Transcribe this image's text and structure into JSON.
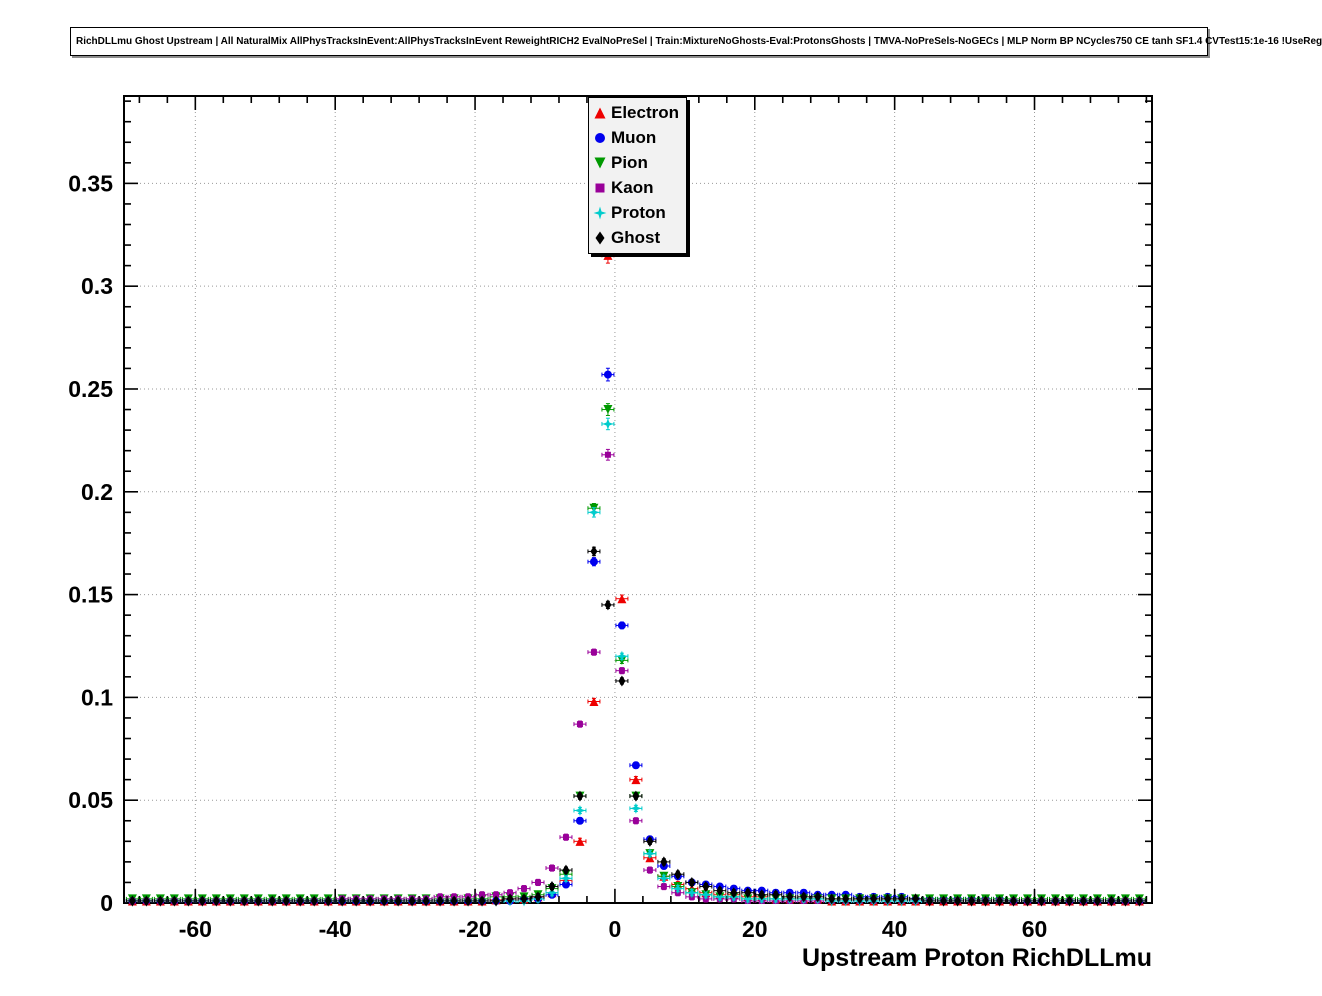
{
  "chart_data": {
    "type": "scatter",
    "title": "RichDLLmu Ghost Upstream | All NaturalMix AllPhysTracksInEvent:AllPhysTracksInEvent ReweightRICH2 EvalNoPreSel | Train:MixtureNoGhosts-Eval:ProtonsGhosts | TMVA-NoPreSels-NoGECs | MLP Norm BP NCycles750 CE tanh SF1.4 CVTest15:1e-16 !UseReg",
    "xlabel": "Upstream Proton RichDLLmu",
    "ylabel": "",
    "xlim": [
      -70.2,
      76.8
    ],
    "ylim": [
      0,
      0.3925
    ],
    "grid": "dotted",
    "legend_position": "top-center",
    "xticks": {
      "values": [
        -60,
        -40,
        -20,
        0,
        20,
        40,
        60
      ],
      "labels": [
        "-60",
        "-40",
        "-20",
        "0",
        "20",
        "40",
        "60"
      ]
    },
    "yticks": {
      "values": [
        0,
        0.05,
        0.1,
        0.15,
        0.2,
        0.25,
        0.3,
        0.35
      ],
      "labels": [
        "0",
        "0.05",
        "0.1",
        "0.15",
        "0.2",
        "0.25",
        "0.3",
        "0.35"
      ]
    },
    "x_minor_step": 4,
    "y_minor_step": 0.01,
    "bin_width": 2,
    "x": [
      -69,
      -67,
      -65,
      -63,
      -61,
      -59,
      -57,
      -55,
      -53,
      -51,
      -49,
      -47,
      -45,
      -43,
      -41,
      -39,
      -37,
      -35,
      -33,
      -31,
      -29,
      -27,
      -25,
      -23,
      -21,
      -19,
      -17,
      -15,
      -13,
      -11,
      -9,
      -7,
      -5,
      -3,
      -1,
      1,
      3,
      5,
      7,
      9,
      11,
      13,
      15,
      17,
      19,
      21,
      23,
      25,
      27,
      29,
      31,
      33,
      35,
      37,
      39,
      41,
      43,
      45,
      47,
      49,
      51,
      53,
      55,
      57,
      59,
      61,
      63,
      65,
      67,
      69,
      71,
      73,
      75
    ],
    "series": [
      {
        "name": "Electron",
        "color": "#ee0000",
        "marker": "triangle-up",
        "values": [
          0.001,
          0.001,
          0.001,
          0.001,
          0.001,
          0.001,
          0.001,
          0.001,
          0.001,
          0.001,
          0.001,
          0.001,
          0.001,
          0.001,
          0.001,
          0.001,
          0.001,
          0.001,
          0.001,
          0.001,
          0.001,
          0.001,
          0.001,
          0.001,
          0.001,
          0.001,
          0.0015,
          0.002,
          0.002,
          0.003,
          0.005,
          0.011,
          0.03,
          0.098,
          0.315,
          0.148,
          0.06,
          0.022,
          0.013,
          0.009,
          0.007,
          0.005,
          0.004,
          0.004,
          0.003,
          0.003,
          0.002,
          0.002,
          0.002,
          0.002,
          0.001,
          0.001,
          0.001,
          0.001,
          0.001,
          0.001,
          0.001,
          0.001,
          0.001,
          0.001,
          0.001,
          0.001,
          0.001,
          0.001,
          0.001,
          0.001,
          0.001,
          0.001,
          0.001,
          0.001,
          0.001,
          0.001,
          0.001
        ]
      },
      {
        "name": "Muon",
        "color": "#0000ee",
        "marker": "circle",
        "values": [
          0.001,
          0.001,
          0.001,
          0.001,
          0.001,
          0.001,
          0.001,
          0.001,
          0.001,
          0.001,
          0.001,
          0.001,
          0.001,
          0.001,
          0.001,
          0.001,
          0.001,
          0.001,
          0.001,
          0.001,
          0.001,
          0.001,
          0.001,
          0.001,
          0.001,
          0.001,
          0.001,
          0.001,
          0.002,
          0.002,
          0.004,
          0.009,
          0.04,
          0.166,
          0.257,
          0.135,
          0.067,
          0.031,
          0.018,
          0.013,
          0.01,
          0.009,
          0.008,
          0.007,
          0.006,
          0.006,
          0.005,
          0.005,
          0.005,
          0.004,
          0.004,
          0.004,
          0.003,
          0.003,
          0.003,
          0.003,
          0.002,
          0.002,
          0.002,
          0.002,
          0.002,
          0.002,
          0.002,
          0.001,
          0.001,
          0.001,
          0.001,
          0.001,
          0.001,
          0.001,
          0.001,
          0.001,
          0.001
        ]
      },
      {
        "name": "Pion",
        "color": "#009900",
        "marker": "triangle-down",
        "values": [
          0.002,
          0.002,
          0.002,
          0.002,
          0.002,
          0.002,
          0.002,
          0.002,
          0.002,
          0.002,
          0.002,
          0.002,
          0.002,
          0.002,
          0.002,
          0.002,
          0.002,
          0.002,
          0.002,
          0.002,
          0.002,
          0.002,
          0.002,
          0.002,
          0.002,
          0.002,
          0.003,
          0.003,
          0.003,
          0.004,
          0.007,
          0.014,
          0.052,
          0.192,
          0.24,
          0.118,
          0.052,
          0.024,
          0.013,
          0.008,
          0.005,
          0.004,
          0.003,
          0.003,
          0.002,
          0.002,
          0.002,
          0.002,
          0.002,
          0.002,
          0.002,
          0.002,
          0.002,
          0.002,
          0.002,
          0.002,
          0.002,
          0.002,
          0.002,
          0.002,
          0.002,
          0.002,
          0.002,
          0.002,
          0.002,
          0.002,
          0.002,
          0.002,
          0.002,
          0.002,
          0.002,
          0.002,
          0.002
        ]
      },
      {
        "name": "Kaon",
        "color": "#990099",
        "marker": "square",
        "values": [
          0.001,
          0.001,
          0.001,
          0.001,
          0.001,
          0.001,
          0.001,
          0.001,
          0.001,
          0.001,
          0.001,
          0.001,
          0.001,
          0.001,
          0.001,
          0.002,
          0.002,
          0.002,
          0.002,
          0.002,
          0.002,
          0.002,
          0.003,
          0.003,
          0.003,
          0.004,
          0.004,
          0.005,
          0.007,
          0.01,
          0.017,
          0.032,
          0.087,
          0.122,
          0.218,
          0.113,
          0.04,
          0.016,
          0.008,
          0.005,
          0.003,
          0.002,
          0.002,
          0.002,
          0.001,
          0.001,
          0.001,
          0.001,
          0.001,
          0.001,
          0.001,
          0.001,
          0.001,
          0.001,
          0.001,
          0.001,
          0.001,
          0.001,
          0.001,
          0.001,
          0.001,
          0.001,
          0.001,
          0.001,
          0.001,
          0.001,
          0.001,
          0.001,
          0.001,
          0.001,
          0.001,
          0.001,
          0.001
        ]
      },
      {
        "name": "Proton",
        "color": "#00cccc",
        "marker": "star",
        "values": [
          0.001,
          0.001,
          0.001,
          0.001,
          0.001,
          0.001,
          0.001,
          0.001,
          0.001,
          0.001,
          0.001,
          0.001,
          0.001,
          0.001,
          0.001,
          0.001,
          0.001,
          0.001,
          0.001,
          0.001,
          0.001,
          0.001,
          0.001,
          0.001,
          0.001,
          0.001,
          0.001,
          0.001,
          0.001,
          0.002,
          0.005,
          0.012,
          0.045,
          0.19,
          0.233,
          0.12,
          0.046,
          0.024,
          0.012,
          0.007,
          0.005,
          0.004,
          0.003,
          0.003,
          0.002,
          0.002,
          0.002,
          0.002,
          0.002,
          0.002,
          0.001,
          0.001,
          0.001,
          0.001,
          0.001,
          0.001,
          0.001,
          0.001,
          0.001,
          0.001,
          0.001,
          0.001,
          0.001,
          0.001,
          0.001,
          0.001,
          0.001,
          0.001,
          0.001,
          0.001,
          0.001,
          0.001,
          0.001
        ]
      },
      {
        "name": "Ghost",
        "color": "#000000",
        "marker": "diamond",
        "values": [
          0.001,
          0.001,
          0.001,
          0.001,
          0.001,
          0.001,
          0.001,
          0.001,
          0.001,
          0.001,
          0.001,
          0.001,
          0.001,
          0.001,
          0.001,
          0.001,
          0.001,
          0.001,
          0.001,
          0.001,
          0.001,
          0.001,
          0.001,
          0.001,
          0.001,
          0.001,
          0.001,
          0.002,
          0.002,
          0.003,
          0.008,
          0.016,
          0.052,
          0.171,
          0.145,
          0.108,
          0.052,
          0.03,
          0.02,
          0.014,
          0.01,
          0.008,
          0.006,
          0.005,
          0.005,
          0.004,
          0.004,
          0.003,
          0.003,
          0.003,
          0.002,
          0.002,
          0.002,
          0.002,
          0.002,
          0.002,
          0.002,
          0.001,
          0.001,
          0.001,
          0.001,
          0.001,
          0.001,
          0.001,
          0.001,
          0.001,
          0.001,
          0.001,
          0.001,
          0.001,
          0.001,
          0.001,
          0.001
        ]
      }
    ]
  }
}
